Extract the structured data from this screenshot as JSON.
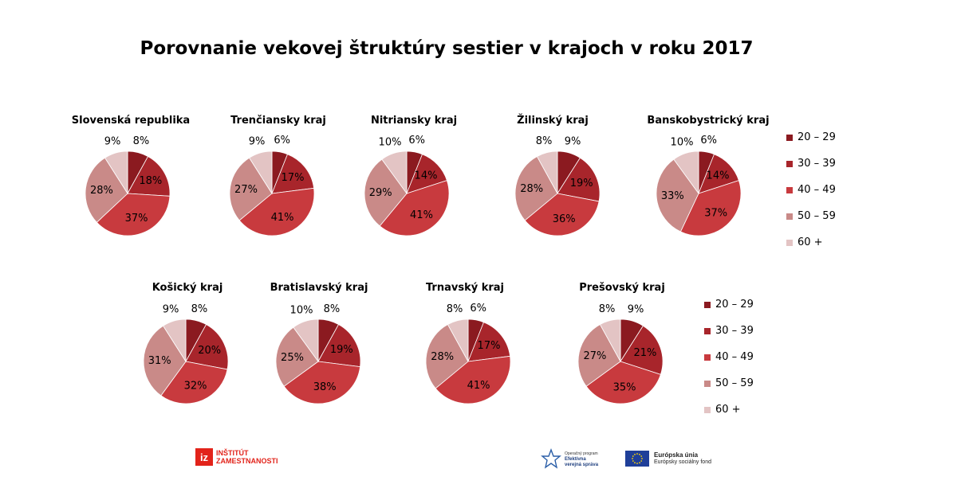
{
  "title": "Porovnanie vekovej štruktúry sestier v krajoch v roku 2017",
  "colors": {
    "age_20_29": "#8b1a20",
    "age_30_39": "#a8252b",
    "age_40_49": "#c83a3e",
    "age_50_59": "#c98a88",
    "age_60_plus": "#e3c4c4"
  },
  "legend": {
    "items": [
      "20 – 29",
      "30 – 39",
      "40 – 49",
      "50 – 59",
      "60 +"
    ]
  },
  "logos": {
    "iz_mark": "iz",
    "iz_line1": "INŠTITÚT",
    "iz_line2": "ZAMESTNANOSTI",
    "ovs_line1": "Operačný program",
    "ovs_line2": "Efektívna",
    "ovs_line3": "verejná správa",
    "eu_line1": "Európska únia",
    "eu_line2": "Európsky sociálny fond"
  },
  "chart_data": [
    {
      "type": "pie",
      "title": "Slovenská republika",
      "categories": [
        "20 – 29",
        "30 – 39",
        "40 – 49",
        "50 – 59",
        "60 +"
      ],
      "values": [
        8,
        18,
        37,
        28,
        9
      ]
    },
    {
      "type": "pie",
      "title": "Trenčiansky kraj",
      "categories": [
        "20 – 29",
        "30 – 39",
        "40 – 49",
        "50 – 59",
        "60 +"
      ],
      "values": [
        6,
        17,
        41,
        27,
        9
      ]
    },
    {
      "type": "pie",
      "title": "Nitriansky kraj",
      "categories": [
        "20 – 29",
        "30 – 39",
        "40 – 49",
        "50 – 59",
        "60 +"
      ],
      "values": [
        6,
        14,
        41,
        29,
        10
      ]
    },
    {
      "type": "pie",
      "title": "Žilinský kraj",
      "categories": [
        "20 – 29",
        "30 – 39",
        "40 – 49",
        "50 – 59",
        "60 +"
      ],
      "values": [
        9,
        19,
        36,
        28,
        8
      ]
    },
    {
      "type": "pie",
      "title": "Banskobystrický kraj",
      "categories": [
        "20 – 29",
        "30 – 39",
        "40 – 49",
        "50 – 59",
        "60 +"
      ],
      "values": [
        6,
        14,
        37,
        33,
        10
      ]
    },
    {
      "type": "pie",
      "title": "Košický kraj",
      "categories": [
        "20 – 29",
        "30 – 39",
        "40 – 49",
        "50 – 59",
        "60 +"
      ],
      "values": [
        8,
        20,
        32,
        31,
        9
      ]
    },
    {
      "type": "pie",
      "title": "Bratislavský kraj",
      "categories": [
        "20 – 29",
        "30 – 39",
        "40 – 49",
        "50 – 59",
        "60 +"
      ],
      "values": [
        8,
        19,
        38,
        25,
        10
      ]
    },
    {
      "type": "pie",
      "title": "Trnavský kraj",
      "categories": [
        "20 – 29",
        "30 – 39",
        "40 – 49",
        "50 – 59",
        "60 +"
      ],
      "values": [
        6,
        17,
        41,
        28,
        8
      ]
    },
    {
      "type": "pie",
      "title": "Prešovský kraj",
      "categories": [
        "20 – 29",
        "30 – 39",
        "40 – 49",
        "50 – 59",
        "60 +"
      ],
      "values": [
        9,
        21,
        35,
        27,
        8
      ]
    }
  ]
}
